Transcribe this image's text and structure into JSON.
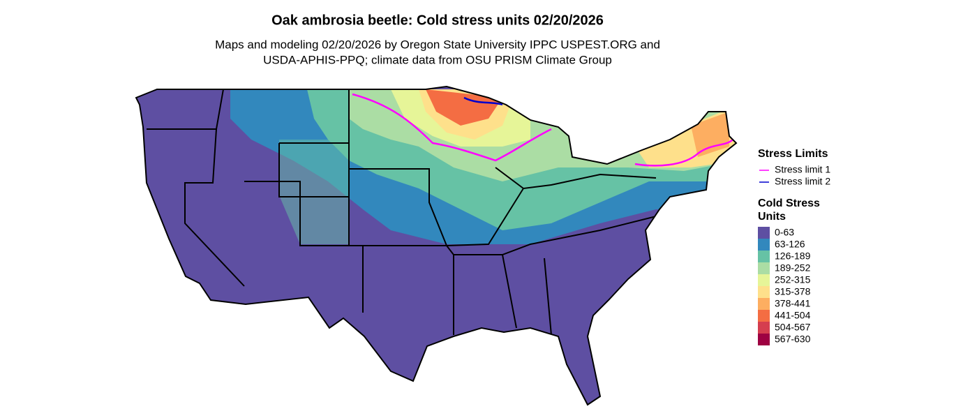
{
  "title": "Oak ambrosia beetle: Cold stress units 02/20/2026",
  "subtitle_lines": [
    "Maps and modeling 02/20/2026 by Oregon State University IPPC USPEST.ORG and",
    "USDA-APHIS-PPQ; climate data from OSU PRISM Climate Group"
  ],
  "stress_limits": {
    "title": "Stress Limits",
    "items": [
      {
        "label": "Stress limit 1",
        "color": "#ff00ff"
      },
      {
        "label": "Stress limit 2",
        "color": "#0000cd"
      }
    ]
  },
  "cold_stress": {
    "title_lines": [
      "Cold Stress",
      "Units"
    ],
    "items": [
      {
        "label": "0-63",
        "color": "#5e4fa2"
      },
      {
        "label": "63-126",
        "color": "#3288bd"
      },
      {
        "label": "126-189",
        "color": "#66c2a5"
      },
      {
        "label": "189-252",
        "color": "#abdda4"
      },
      {
        "label": "252-315",
        "color": "#e6f598"
      },
      {
        "label": "315-378",
        "color": "#fee08b"
      },
      {
        "label": "378-441",
        "color": "#fdae61"
      },
      {
        "label": "441-504",
        "color": "#f46d43"
      },
      {
        "label": "504-567",
        "color": "#d53e4f"
      },
      {
        "label": "567-630",
        "color": "#9e0142"
      }
    ]
  }
}
